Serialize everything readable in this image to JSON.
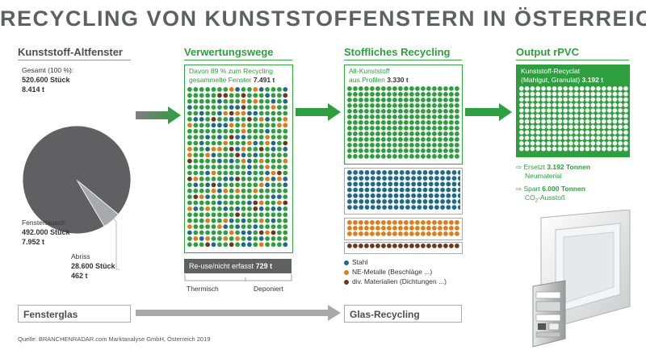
{
  "title": "RECYCLING VON KUNSTSTOFFENSTERN IN ÖSTERREICH",
  "columns": {
    "col1": "Kunststoff-Altfenster",
    "col2": "Verwertungswege",
    "col3": "Stoffliches Recycling",
    "col4": "Output rPVC"
  },
  "total": {
    "label": "Gesamt (100 %):",
    "count": "520.600 Stück",
    "tons": "8.414 t"
  },
  "fenstertausch": {
    "label": "Fenstertausch",
    "count": "492.000 Stück",
    "tons": "7.952 t"
  },
  "abriss": {
    "label": "Abriss",
    "count": "28.600 Stück",
    "tons": "462 t"
  },
  "verwertung": {
    "text": "Davon 89 % zum Recycling gesammelte Fenster",
    "line1": "Davon 89 % zum Recycling",
    "line2": "gesammelte Fenster",
    "value": "7.491 t",
    "reuse_label": "Re-use/nicht erfasst",
    "reuse_value": "729 t",
    "thermisch": "Thermisch",
    "deponiert": "Deponiert"
  },
  "stofflich": {
    "line1": "Alt-Kunststoff",
    "line2": "aus Profilen",
    "value": "3.330 t"
  },
  "legend": [
    {
      "label": "Stahl",
      "color": "#1f6b87"
    },
    {
      "label": "NE-Metalle (Beschläge ...)",
      "color": "#d97f1e"
    },
    {
      "label": "div. Materialien (Dichtungen ...)",
      "color": "#6b3a1e"
    }
  ],
  "output": {
    "line1": "Kunststoff-Recyclat",
    "line2": "(Mahlgut, Granulat)",
    "value": "3.192 t",
    "ersetzt_pre": "Ersetzt",
    "ersetzt_value": "3.192 Tonnen",
    "ersetzt_post": "Neumaterial",
    "spart_pre": "Spart",
    "spart_value": "6.000 Tonnen",
    "spart_post_a": "CO",
    "spart_post_sub": "2",
    "spart_post_b": "-Ausstoß"
  },
  "glas": {
    "left": "Fensterglas",
    "right": "Glas-Recycling"
  },
  "source": "Quelle: BRANCHENRADAR.com Marktanalyse GmbH, Österreich 2019",
  "colors": {
    "green": "#2e9e3e",
    "grey": "#5f6062",
    "pie_dark": "#606062",
    "pie_light": "#a8a9ab",
    "steel": "#1f6b87",
    "ne": "#d97f1e",
    "div": "#6b3a1e"
  },
  "chart_data": {
    "type": "pie",
    "title": "Kunststoff-Altfenster",
    "categories": [
      "Fenstertausch",
      "Abriss"
    ],
    "values": [
      7952,
      462
    ],
    "units": "t",
    "counts": [
      492000,
      28600
    ],
    "total_tons": 8414,
    "total_count": 520600,
    "flows": [
      {
        "name": "Verwertungswege – zum Recycling gesammelte Fenster",
        "value": 7491,
        "units": "t"
      },
      {
        "name": "Re-use/nicht erfasst",
        "value": 729,
        "units": "t"
      },
      {
        "name": "Alt-Kunststoff aus Profilen",
        "value": 3330,
        "units": "t"
      },
      {
        "name": "Kunststoff-Recyclat (Mahlgut, Granulat)",
        "value": 3192,
        "units": "t"
      },
      {
        "name": "Ersetzt Neumaterial",
        "value": 3192,
        "units": "Tonnen"
      },
      {
        "name": "Spart CO2-Ausstoß",
        "value": 6000,
        "units": "Tonnen"
      }
    ]
  }
}
